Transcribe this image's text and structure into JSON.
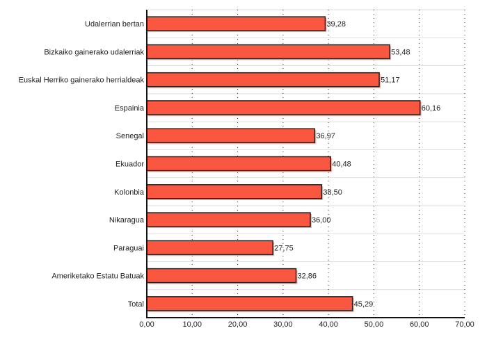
{
  "chart_data": {
    "type": "bar",
    "orientation": "horizontal",
    "categories": [
      "Udalerrian bertan",
      "Bizkaiko gainerako udalerriak",
      "Euskal Herriko gainerako herrialdeak",
      "Espainia",
      "Senegal",
      "Ekuador",
      "Kolonbia",
      "Nikaragua",
      "Paraguai",
      "Ameriketako Estatu Batuak",
      "Total"
    ],
    "values": [
      39.28,
      53.48,
      51.17,
      60.16,
      36.97,
      40.48,
      38.5,
      36.0,
      27.75,
      32.86,
      45.29
    ],
    "value_labels": [
      "39,28",
      "53,48",
      "51,17",
      "60,16",
      "36,97",
      "40,48",
      "38,50",
      "36,00",
      "27,75",
      "32,86",
      "45,29"
    ],
    "xlim": [
      0,
      70
    ],
    "xticks": [
      0,
      10,
      20,
      30,
      40,
      50,
      60,
      70
    ],
    "xtick_labels": [
      "0,00",
      "10,00",
      "20,00",
      "30,00",
      "40,00",
      "50,00",
      "60,00",
      "70,00"
    ],
    "title": "",
    "xlabel": "",
    "ylabel": "",
    "grid": true,
    "bar_color": "#fa5740"
  }
}
